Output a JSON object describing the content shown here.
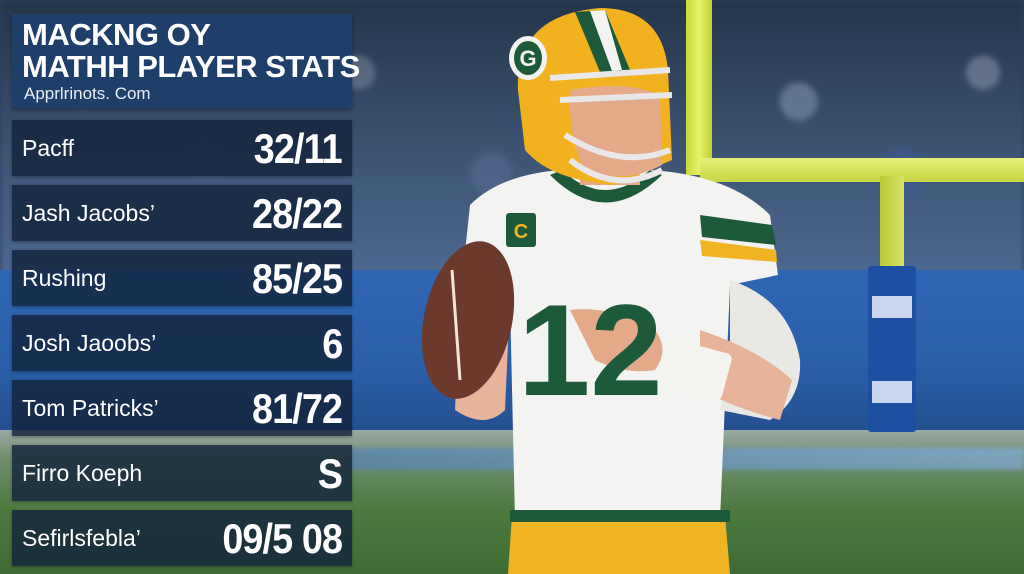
{
  "overlay": {
    "title_line1": "MACKNG OY",
    "title_line2": "MATHH PLAYER STATS",
    "subtitle": "Apprlrinots. Com",
    "stats": [
      {
        "label": "Pacff",
        "value": "32/11"
      },
      {
        "label": "Jash Jacobs’",
        "value": "28/22"
      },
      {
        "label": "Rushing",
        "value": "85/25"
      },
      {
        "label": "Josh Jaoobs’",
        "value": "6"
      },
      {
        "label": "Tom Patricks’",
        "value": "81/72"
      },
      {
        "label": "Firro Koeph",
        "value": "S"
      },
      {
        "label": "Sefirlsfebla’",
        "value": "09/5 08"
      }
    ]
  },
  "player": {
    "jersey_number": "12",
    "captain_patch": "C",
    "helmet_logo": "G",
    "colors": {
      "helmet": "#f2b21f",
      "jersey": "#f3f3f1",
      "green": "#1c5a3a",
      "pants": "#f0b323"
    }
  },
  "colors": {
    "panel_header": "#1f3f6b",
    "panel_row": "#12233c",
    "goal_post": "#d6e24f",
    "stadium_wall": "#2a5ea8",
    "turf": "#4c7a3f"
  }
}
